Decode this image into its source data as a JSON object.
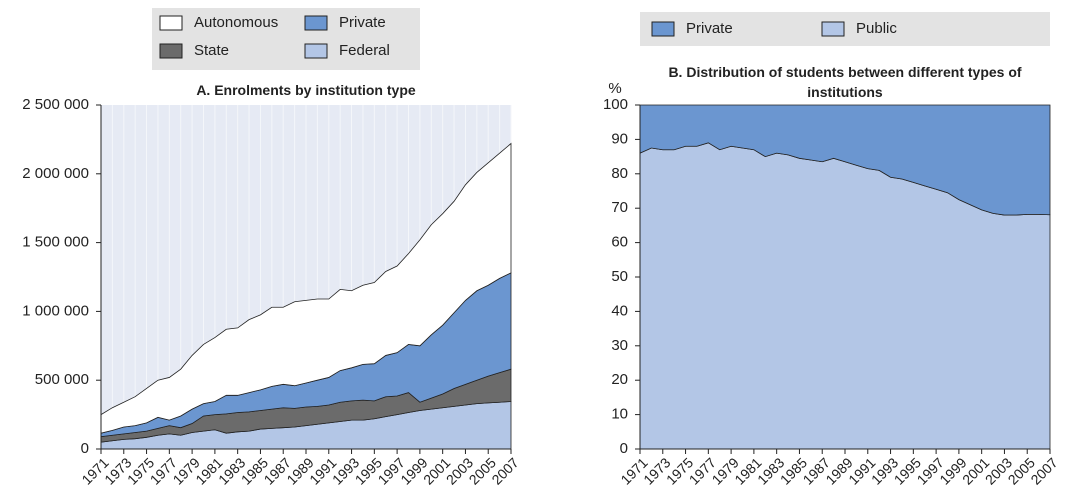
{
  "chart_data": [
    {
      "type": "area",
      "stacked": true,
      "title": "A. Enrolments by institution type",
      "x": [
        1971,
        1972,
        1973,
        1974,
        1975,
        1976,
        1977,
        1978,
        1979,
        1980,
        1981,
        1982,
        1983,
        1984,
        1985,
        1986,
        1987,
        1988,
        1989,
        1990,
        1991,
        1992,
        1993,
        1994,
        1995,
        1996,
        1997,
        1998,
        1999,
        2000,
        2001,
        2002,
        2003,
        2004,
        2005,
        2006,
        2007
      ],
      "xlim": [
        1971,
        2007
      ],
      "xticks": [
        1971,
        1973,
        1975,
        1977,
        1979,
        1981,
        1983,
        1985,
        1987,
        1989,
        1991,
        1993,
        1995,
        1997,
        1999,
        2001,
        2003,
        2005,
        2007
      ],
      "ylim": [
        0,
        2500000
      ],
      "yticks": [
        0,
        {
          "value": 500000,
          "label": "500 000"
        },
        {
          "value": 1000000,
          "label": "1 000 000"
        },
        {
          "value": 1500000,
          "label": "1 500 000"
        },
        {
          "value": 2000000,
          "label": "2 000 000"
        },
        {
          "value": 2500000,
          "label": "2 500 000"
        }
      ],
      "series": [
        {
          "name": "Federal",
          "color": "#b3c6e6",
          "values": [
            50000,
            60000,
            70000,
            75000,
            85000,
            100000,
            110000,
            100000,
            120000,
            130000,
            140000,
            115000,
            125000,
            130000,
            145000,
            150000,
            155000,
            160000,
            170000,
            180000,
            190000,
            200000,
            210000,
            210000,
            220000,
            235000,
            250000,
            265000,
            280000,
            290000,
            300000,
            310000,
            320000,
            330000,
            335000,
            340000,
            345000
          ]
        },
        {
          "name": "State",
          "color": "#6b6b6b",
          "values": [
            40000,
            40000,
            40000,
            45000,
            45000,
            50000,
            60000,
            55000,
            65000,
            110000,
            110000,
            140000,
            140000,
            140000,
            135000,
            140000,
            145000,
            135000,
            135000,
            130000,
            130000,
            140000,
            140000,
            145000,
            130000,
            145000,
            135000,
            145000,
            60000,
            80000,
            100000,
            130000,
            150000,
            170000,
            195000,
            215000,
            235000
          ]
        },
        {
          "name": "Private",
          "color": "#6b96d0",
          "values": [
            25000,
            35000,
            50000,
            50000,
            60000,
            80000,
            40000,
            85000,
            105000,
            90000,
            95000,
            135000,
            125000,
            140000,
            150000,
            165000,
            170000,
            165000,
            175000,
            190000,
            200000,
            230000,
            240000,
            260000,
            270000,
            300000,
            315000,
            350000,
            410000,
            460000,
            500000,
            550000,
            610000,
            650000,
            660000,
            685000,
            700000
          ]
        },
        {
          "name": "Autonomous",
          "color": "#ffffff",
          "values": [
            135000,
            165000,
            180000,
            210000,
            250000,
            270000,
            310000,
            340000,
            390000,
            430000,
            465000,
            480000,
            490000,
            530000,
            545000,
            575000,
            560000,
            610000,
            600000,
            590000,
            570000,
            590000,
            560000,
            575000,
            590000,
            610000,
            630000,
            660000,
            770000,
            800000,
            810000,
            810000,
            840000,
            860000,
            890000,
            910000,
            940000
          ]
        }
      ]
    },
    {
      "type": "area",
      "stacked": true,
      "title": "B. Distribution of students between different types of institutions",
      "ylabel": "%",
      "x": [
        1971,
        1972,
        1973,
        1974,
        1975,
        1976,
        1977,
        1978,
        1979,
        1980,
        1981,
        1982,
        1983,
        1984,
        1985,
        1986,
        1987,
        1988,
        1989,
        1990,
        1991,
        1992,
        1993,
        1994,
        1995,
        1996,
        1997,
        1998,
        1999,
        2000,
        2001,
        2002,
        2003,
        2004,
        2005,
        2006,
        2007
      ],
      "xlim": [
        1971,
        2007
      ],
      "xticks": [
        1971,
        1973,
        1975,
        1977,
        1979,
        1981,
        1983,
        1985,
        1987,
        1989,
        1991,
        1993,
        1995,
        1997,
        1999,
        2001,
        2003,
        2005,
        2007
      ],
      "ylim": [
        0,
        100
      ],
      "yticks": [
        0,
        10,
        20,
        30,
        40,
        50,
        60,
        70,
        80,
        90,
        100
      ],
      "series": [
        {
          "name": "Public",
          "color": "#b3c6e6",
          "values": [
            86,
            87.5,
            87,
            87,
            88,
            88,
            89,
            87,
            88,
            87.5,
            87,
            85,
            86,
            85.5,
            84.5,
            84,
            83.5,
            84.5,
            83.5,
            82.5,
            81.5,
            81,
            79,
            78.5,
            77.5,
            76.5,
            75.5,
            74.5,
            72.5,
            71,
            69.5,
            68.5,
            68,
            68,
            68.2,
            68.2,
            68.1
          ]
        },
        {
          "name": "Private",
          "color": "#6b96d0",
          "values": [
            14,
            12.5,
            13,
            13,
            12,
            12,
            11,
            13,
            12,
            12.5,
            13,
            15,
            14,
            14.5,
            15.5,
            16,
            16.5,
            15.5,
            16.5,
            17.5,
            18.5,
            19,
            21,
            21.5,
            22.5,
            23.5,
            24.5,
            25.5,
            27.5,
            29,
            30.5,
            31.5,
            32,
            32,
            31.8,
            31.8,
            31.9
          ]
        }
      ]
    }
  ]
}
